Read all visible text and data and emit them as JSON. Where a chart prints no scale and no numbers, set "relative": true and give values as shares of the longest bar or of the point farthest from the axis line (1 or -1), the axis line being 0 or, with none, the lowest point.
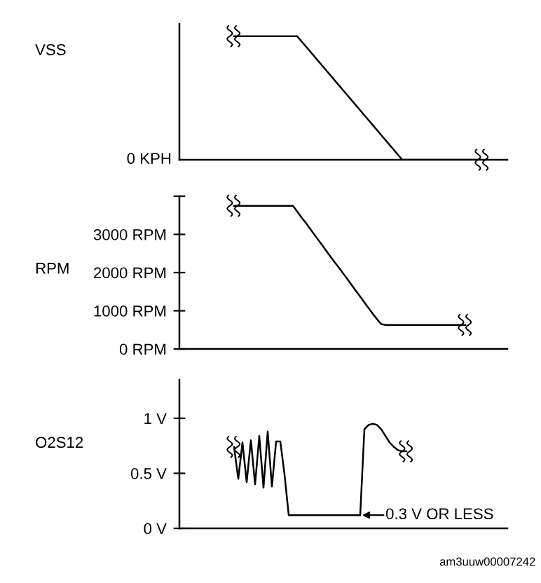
{
  "chart_data": [
    {
      "type": "line",
      "ylabel": "VSS",
      "relative": true,
      "tick_labels": "y",
      "grid": false,
      "legend": false,
      "categories": [
        null,
        null,
        null,
        null,
        null,
        null,
        null,
        null,
        null,
        null,
        null,
        null,
        null,
        null,
        null,
        null,
        null,
        null,
        null,
        null,
        null,
        null,
        null,
        null,
        null,
        null,
        null,
        null,
        null,
        null,
        null,
        null,
        null,
        null,
        null,
        null,
        null,
        null,
        null,
        null,
        null,
        null,
        null,
        null,
        null,
        null,
        null,
        null,
        null,
        null,
        null,
        null,
        null,
        null,
        null,
        null,
        null,
        null,
        null,
        null,
        null,
        null,
        null,
        null,
        null,
        null,
        null,
        null,
        null,
        null,
        null,
        null,
        null,
        null,
        null,
        null,
        null,
        null,
        null
      ],
      "series": [
        {
          "color": "#000000",
          "values": [
            null,
            null,
            null,
            null,
            null,
            null,
            null,
            null,
            null,
            null,
            null,
            null,
            null,
            1,
            1,
            1,
            1,
            1,
            1,
            1,
            1,
            1,
            1,
            1,
            1,
            1,
            1,
            1,
            1,
            0.96,
            0.92,
            0.88,
            0.84,
            0.8,
            0.76,
            0.72,
            0.68,
            0.64,
            0.6,
            0.56,
            0.52,
            0.48,
            0.44,
            0.4,
            0.36,
            0.32,
            0.28,
            0.24,
            0.2,
            0.16,
            0.12,
            0.08,
            0.04,
            0,
            0,
            0,
            0,
            0,
            0,
            0,
            0,
            0,
            0,
            0,
            0,
            0,
            0,
            0,
            0,
            0,
            0,
            0,
            0,
            null,
            null,
            null,
            null,
            null,
            null
          ]
        }
      ],
      "annotations": [
        "0 KPH"
      ]
    },
    {
      "type": "line",
      "ylabel": "RPM",
      "tick_labels": "y",
      "grid": false,
      "legend": false,
      "categories": [
        null,
        null,
        null,
        null,
        null,
        null,
        null,
        null,
        null,
        null,
        null,
        null,
        null,
        null,
        null,
        null,
        null,
        null,
        null,
        null,
        null,
        null,
        null,
        null,
        null,
        null,
        null,
        null,
        null,
        null,
        null,
        null,
        null,
        null,
        null,
        null,
        null,
        null,
        null,
        null,
        null,
        null,
        null,
        null,
        null,
        null,
        null,
        null,
        null,
        null,
        null,
        null,
        null,
        null,
        null,
        null,
        null,
        null,
        null,
        null,
        null,
        null,
        null,
        null,
        null,
        null,
        null,
        null,
        null,
        null,
        null,
        null,
        null,
        null,
        null,
        null,
        null,
        null,
        null
      ],
      "ylim": [
        0,
        4000
      ],
      "yticks": [
        {
          "value": 0,
          "label": "0 RPM"
        },
        {
          "value": 1000,
          "label": "1000 RPM"
        },
        {
          "value": 2000,
          "label": "2000 RPM"
        },
        {
          "value": 3000,
          "label": "3000 RPM"
        },
        {
          "value": 4000,
          "label": null
        }
      ],
      "series": [
        {
          "color": "#000000",
          "values": [
            null,
            null,
            null,
            null,
            null,
            null,
            null,
            null,
            null,
            null,
            null,
            null,
            null,
            3750,
            3750,
            3750,
            3750,
            3750,
            3750,
            3750,
            3750,
            3750,
            3750,
            3750,
            3750,
            3750,
            3750,
            3750,
            3600,
            3450,
            3310,
            3160,
            3010,
            2860,
            2710,
            2560,
            2410,
            2260,
            2120,
            1970,
            1820,
            1670,
            1520,
            1370,
            1220,
            1070,
            920,
            780,
            650,
            630,
            630,
            630,
            630,
            630,
            630,
            630,
            630,
            630,
            630,
            630,
            630,
            630,
            630,
            630,
            630,
            630,
            630,
            630,
            630,
            null,
            null,
            null,
            null,
            null,
            null,
            null,
            null,
            null,
            null
          ]
        }
      ]
    },
    {
      "type": "line",
      "ylabel": "O2S12",
      "tick_labels": "y",
      "grid": false,
      "legend": false,
      "categories": [
        null,
        null,
        null,
        null,
        null,
        null,
        null,
        null,
        null,
        null,
        null,
        null,
        null,
        null,
        null,
        null,
        null,
        null,
        null,
        null,
        null,
        null,
        null,
        null,
        null,
        null,
        null,
        null,
        null,
        null,
        null,
        null,
        null,
        null,
        null,
        null,
        null,
        null,
        null,
        null,
        null,
        null,
        null,
        null,
        null,
        null,
        null,
        null,
        null,
        null,
        null,
        null,
        null,
        null,
        null,
        null,
        null,
        null,
        null,
        null,
        null,
        null,
        null,
        null,
        null,
        null,
        null,
        null,
        null,
        null,
        null,
        null,
        null,
        null,
        null,
        null,
        null,
        null,
        null
      ],
      "ylim": [
        0,
        1.35
      ],
      "yticks": [
        {
          "value": 0,
          "label": "0 V"
        },
        {
          "value": 0.5,
          "label": "0.5 V"
        },
        {
          "value": 1,
          "label": "1 V"
        }
      ],
      "series": [
        {
          "color": "#000000",
          "values": [
            null,
            null,
            null,
            null,
            null,
            null,
            null,
            null,
            null,
            null,
            null,
            null,
            null,
            0.74,
            0.45,
            0.78,
            0.42,
            0.8,
            0.4,
            0.84,
            0.37,
            0.88,
            0.38,
            0.79,
            0.79,
            0.49,
            0.12,
            0.12,
            0.12,
            0.12,
            0.12,
            0.12,
            0.12,
            0.12,
            0.12,
            0.12,
            0.12,
            0.12,
            0.12,
            0.12,
            0.12,
            0.12,
            0.12,
            0.12,
            0.9,
            0.94,
            0.95,
            0.94,
            0.9,
            0.84,
            0.78,
            0.74,
            0.71,
            0.7,
            0.7,
            null,
            null,
            null,
            null,
            null,
            null,
            null,
            null,
            null,
            null,
            null,
            null,
            null,
            null,
            null,
            null,
            null,
            null,
            null,
            null,
            null,
            null,
            null,
            null
          ]
        }
      ],
      "annotations": [
        "0.3 V OR LESS",
        "am3uuw00007242"
      ]
    }
  ]
}
